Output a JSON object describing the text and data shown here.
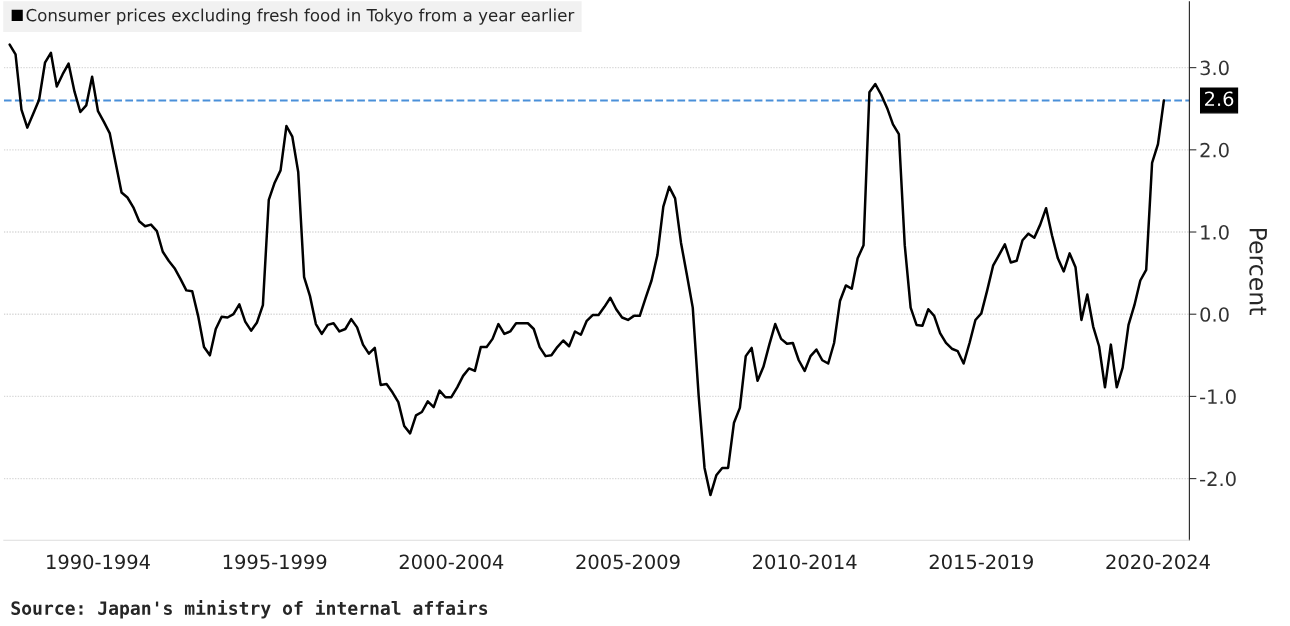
{
  "chart_data": {
    "type": "line",
    "categories": [
      null,
      null,
      null,
      null,
      null,
      null,
      null,
      null,
      null,
      null,
      null,
      null,
      null,
      null,
      null,
      "1990-1994",
      null,
      null,
      null,
      null,
      null,
      null,
      null,
      null,
      null,
      null,
      null,
      null,
      null,
      null,
      null,
      null,
      null,
      null,
      null,
      null,
      null,
      null,
      null,
      null,
      null,
      null,
      null,
      null,
      null,
      "1995-1999",
      null,
      null,
      null,
      null,
      null,
      null,
      null,
      null,
      null,
      null,
      null,
      null,
      null,
      null,
      null,
      null,
      null,
      null,
      null,
      null,
      null,
      null,
      null,
      null,
      null,
      null,
      null,
      null,
      null,
      "2000-2004",
      null,
      null,
      null,
      null,
      null,
      null,
      null,
      null,
      null,
      null,
      null,
      null,
      null,
      null,
      null,
      null,
      null,
      null,
      null,
      null,
      null,
      null,
      null,
      null,
      null,
      null,
      null,
      null,
      null,
      "2005-2009",
      null,
      null,
      null,
      null,
      null,
      null,
      null,
      null,
      null,
      null,
      null,
      null,
      null,
      null,
      null,
      null,
      null,
      null,
      null,
      null,
      null,
      null,
      null,
      null,
      null,
      null,
      null,
      null,
      null,
      "2010-2014",
      null,
      null,
      null,
      null,
      null,
      null,
      null,
      null,
      null,
      null,
      null,
      null,
      null,
      null,
      null,
      null,
      null,
      null,
      null,
      null,
      null,
      null,
      null,
      null,
      null,
      null,
      null,
      null,
      null,
      "2015-2019",
      null,
      null,
      null,
      null,
      null,
      null,
      null,
      null,
      null,
      null,
      null,
      null,
      null,
      null,
      null,
      null,
      null,
      null,
      null,
      null,
      null,
      null,
      null,
      null,
      null,
      null,
      null,
      null,
      null,
      "2020-2024",
      null
    ],
    "series": [
      {
        "name": "Consumer prices excluding fresh food in Tokyo from a year earlier",
        "color": "#000000",
        "values": [
          3.28,
          3.16,
          2.49,
          2.27,
          2.44,
          2.61,
          3.06,
          3.18,
          2.77,
          2.92,
          3.05,
          2.71,
          2.46,
          2.54,
          2.89,
          2.47,
          2.34,
          2.2,
          1.84,
          1.48,
          1.42,
          1.3,
          1.13,
          1.07,
          1.09,
          1.01,
          0.76,
          0.65,
          0.56,
          0.43,
          0.29,
          0.28,
          -0.02,
          -0.4,
          -0.5,
          -0.18,
          -0.03,
          -0.04,
          0.0,
          0.12,
          -0.09,
          -0.2,
          -0.1,
          0.11,
          1.39,
          1.6,
          1.75,
          2.29,
          2.16,
          1.73,
          0.45,
          0.22,
          -0.12,
          -0.24,
          -0.13,
          -0.11,
          -0.21,
          -0.18,
          -0.06,
          -0.16,
          -0.37,
          -0.48,
          -0.41,
          -0.86,
          -0.85,
          -0.95,
          -1.07,
          -1.36,
          -1.45,
          -1.23,
          -1.19,
          -1.06,
          -1.13,
          -0.93,
          -1.01,
          -1.01,
          -0.89,
          -0.75,
          -0.66,
          -0.69,
          -0.4,
          -0.4,
          -0.3,
          -0.12,
          -0.24,
          -0.21,
          -0.11,
          -0.11,
          -0.11,
          -0.18,
          -0.4,
          -0.51,
          -0.5,
          -0.4,
          -0.32,
          -0.39,
          -0.21,
          -0.25,
          -0.08,
          -0.01,
          -0.01,
          0.09,
          0.2,
          0.06,
          -0.04,
          -0.07,
          -0.02,
          -0.02,
          0.2,
          0.41,
          0.72,
          1.31,
          1.55,
          1.41,
          0.87,
          0.48,
          0.08,
          -0.99,
          -1.87,
          -2.2,
          -1.96,
          -1.87,
          -1.87,
          -1.32,
          -1.14,
          -0.51,
          -0.41,
          -0.81,
          -0.64,
          -0.37,
          -0.12,
          -0.3,
          -0.36,
          -0.35,
          -0.56,
          -0.69,
          -0.51,
          -0.43,
          -0.56,
          -0.6,
          -0.35,
          0.16,
          0.35,
          0.31,
          0.68,
          0.84,
          2.7,
          2.8,
          2.67,
          2.51,
          2.31,
          2.19,
          0.84,
          0.08,
          -0.13,
          -0.14,
          0.06,
          -0.02,
          -0.23,
          -0.35,
          -0.42,
          -0.45,
          -0.6,
          -0.35,
          -0.07,
          0.01,
          0.29,
          0.59,
          0.72,
          0.85,
          0.63,
          0.65,
          0.9,
          0.98,
          0.93,
          1.09,
          1.29,
          0.96,
          0.68,
          0.52,
          0.74,
          0.57,
          -0.07,
          0.24,
          -0.15,
          -0.39,
          -0.89,
          -0.37,
          -0.89,
          -0.65,
          -0.13,
          0.11,
          0.41,
          0.54,
          1.84,
          2.07,
          2.6
        ]
      }
    ],
    "ylim": [
      -2.75,
      3.8
    ],
    "yticks": [
      {
        "value": -2,
        "label": "-2.0"
      },
      {
        "value": -1,
        "label": "-1.0"
      },
      {
        "value": 0,
        "label": "0.0"
      },
      {
        "value": 1,
        "label": "1.0"
      },
      {
        "value": 2,
        "label": "2.0"
      },
      {
        "value": 3,
        "label": "3.0"
      }
    ],
    "ylabel": "Percent",
    "ref_lines": [
      {
        "axis": "y",
        "value": 2.6,
        "label": "2.6",
        "color": "#4a90d9",
        "line_style": "dashed"
      }
    ],
    "grid": "y",
    "legend": "top left",
    "marker": "none",
    "line_style": "solid",
    "annotations": [
      "Source: Japan's ministry of internal affairs"
    ]
  }
}
